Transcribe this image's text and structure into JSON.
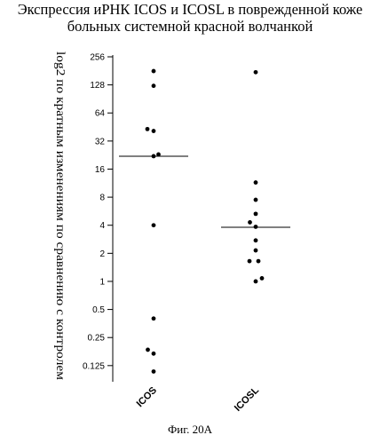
{
  "chart_data": {
    "type": "scatter",
    "title_lines": [
      "Экспрессия иРНК ICOS и ICOSL  в поврежденной коже",
      "больных системной красной волчанкой"
    ],
    "ylabel": "log2 по кратным изменениям по сравнению с контролем",
    "xlabel": "",
    "y_scale": "log2",
    "ylim": [
      0.1,
      256
    ],
    "y_ticks": [
      0.125,
      0.25,
      0.5,
      1,
      2,
      4,
      8,
      16,
      32,
      64,
      128,
      256
    ],
    "y_tick_labels": [
      "0.125",
      "0.25",
      "0.5",
      "1",
      "2",
      "4",
      "8",
      "16",
      "32",
      "64",
      "128",
      "256"
    ],
    "categories": [
      "ICOS",
      "ICOSL"
    ],
    "category_labels": [
      "ICOS",
      "ICOSL"
    ],
    "series": [
      {
        "category": "ICOS",
        "points": [
          {
            "offset": 0.0,
            "value": 180
          },
          {
            "offset": 0.0,
            "value": 125
          },
          {
            "offset": -0.7,
            "value": 43
          },
          {
            "offset": 0.0,
            "value": 41
          },
          {
            "offset": 0.0,
            "value": 22
          },
          {
            "offset": 0.55,
            "value": 23
          },
          {
            "offset": 0.0,
            "value": 4
          },
          {
            "offset": 0.0,
            "value": 0.4
          },
          {
            "offset": -0.65,
            "value": 0.185
          },
          {
            "offset": 0.0,
            "value": 0.168
          },
          {
            "offset": 0.0,
            "value": 0.108
          }
        ],
        "median": 22
      },
      {
        "category": "ICOSL",
        "points": [
          {
            "offset": 0.0,
            "value": 175
          },
          {
            "offset": 0.0,
            "value": 11.5
          },
          {
            "offset": 0.0,
            "value": 7.5
          },
          {
            "offset": 0.0,
            "value": 5.3
          },
          {
            "offset": -0.65,
            "value": 4.3
          },
          {
            "offset": 0.0,
            "value": 3.85
          },
          {
            "offset": 0.0,
            "value": 2.75
          },
          {
            "offset": 0.0,
            "value": 2.15
          },
          {
            "offset": -0.7,
            "value": 1.65
          },
          {
            "offset": 0.3,
            "value": 1.65
          },
          {
            "offset": 0.0,
            "value": 1.0
          },
          {
            "offset": 0.7,
            "value": 1.08
          }
        ],
        "median": 3.8
      }
    ],
    "marker_color": "#000000",
    "grid": false
  },
  "caption": "Фиг. 20А"
}
